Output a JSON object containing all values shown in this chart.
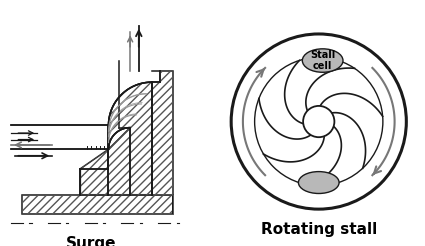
{
  "background_color": "#ffffff",
  "title_surge": "Surge",
  "title_rotating_stall": "Rotating stall",
  "stall_cell_label": "Stall\ncell",
  "title_fontsize": 11,
  "fig_width": 4.25,
  "fig_height": 2.46,
  "line_color": "#1a1a1a",
  "hatch_color": "#555555",
  "gray_arrow": "#777777",
  "gray_fill": "#aaaaaa"
}
